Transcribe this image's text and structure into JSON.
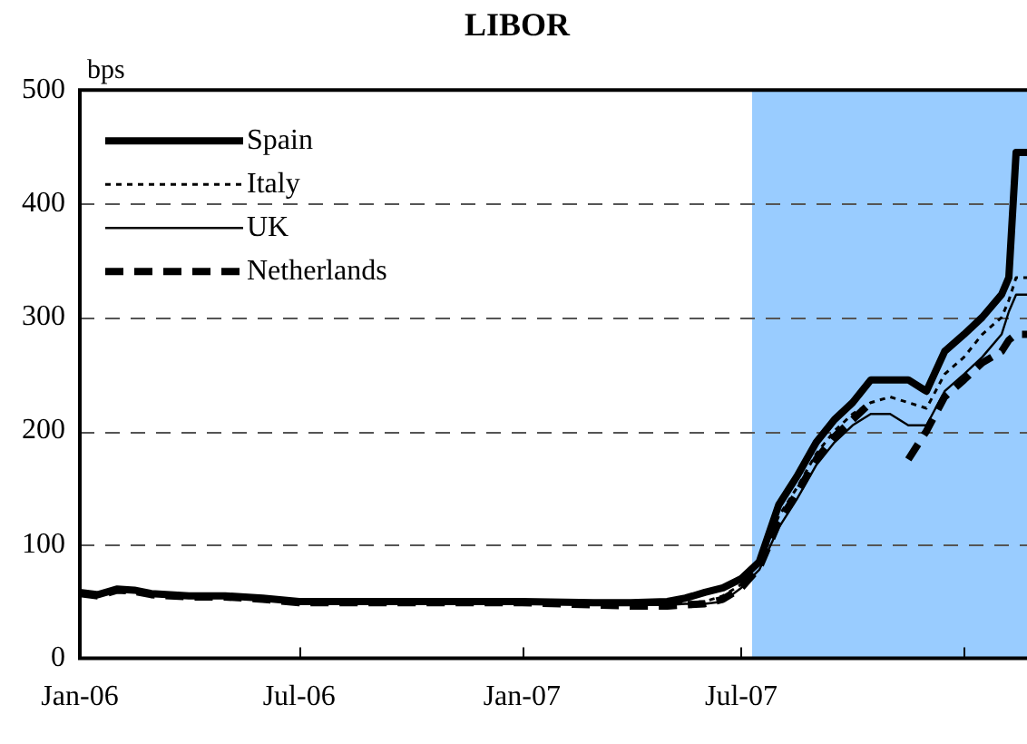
{
  "chart_data": {
    "type": "line",
    "title": "LIBOR",
    "ylabel": "bps",
    "x": [
      "2006-01-01",
      "2006-01-16",
      "2006-02-01",
      "2006-02-15",
      "2006-03-01",
      "2006-04-01",
      "2006-05-01",
      "2006-06-01",
      "2006-07-01",
      "2006-09-01",
      "2006-11-01",
      "2007-01-01",
      "2007-03-01",
      "2007-04-01",
      "2007-05-01",
      "2007-05-16",
      "2007-06-01",
      "2007-06-16",
      "2007-07-01",
      "2007-07-16",
      "2007-08-01",
      "2007-08-16",
      "2007-09-01",
      "2007-09-16",
      "2007-10-01",
      "2007-10-16",
      "2007-11-01",
      "2007-11-16",
      "2007-12-01",
      "2007-12-16",
      "2008-01-01",
      "2008-01-16",
      "2008-02-01",
      "2008-02-07",
      "2008-02-13",
      "2008-02-22"
    ],
    "series": [
      {
        "name": "Spain",
        "color": "#000000",
        "line_style": "solid",
        "values": [
          58,
          56,
          61,
          60,
          57,
          55,
          55,
          53,
          50,
          50,
          50,
          50,
          49,
          49,
          50,
          53,
          58,
          62,
          70,
          85,
          135,
          160,
          190,
          210,
          225,
          245,
          245,
          245,
          235,
          270,
          285,
          300,
          320,
          335,
          445,
          445
        ]
      },
      {
        "name": "Italy",
        "color": "#000000",
        "line_style": "dotted",
        "values": [
          58,
          56,
          61,
          60,
          57,
          55,
          55,
          53,
          50,
          50,
          50,
          50,
          49,
          48,
          48,
          49,
          50,
          55,
          65,
          85,
          125,
          150,
          180,
          200,
          215,
          225,
          230,
          225,
          220,
          250,
          265,
          285,
          300,
          315,
          335,
          335
        ]
      },
      {
        "name": "UK",
        "color": "#000000",
        "line_style": "solid",
        "values": [
          57,
          55,
          60,
          59,
          56,
          54,
          54,
          52,
          49,
          49,
          49,
          49,
          48,
          47,
          47,
          48,
          48,
          50,
          62,
          78,
          115,
          140,
          170,
          190,
          205,
          215,
          215,
          205,
          205,
          235,
          250,
          265,
          285,
          305,
          320,
          320
        ]
      },
      {
        "name": "Netherlands",
        "color": "#000000",
        "line_style": "dashed",
        "values": [
          57,
          55,
          60,
          59,
          56,
          54,
          54,
          52,
          49,
          49,
          49,
          49,
          47,
          46,
          46,
          47,
          48,
          52,
          62,
          80,
          120,
          145,
          175,
          195,
          210,
          225,
          null,
          175,
          200,
          230,
          245,
          260,
          270,
          280,
          285,
          285
        ]
      }
    ],
    "xlim": [
      "2006-01-01",
      "2008-02-22"
    ],
    "xticks": [
      {
        "value": "2006-01",
        "label": "Jan-06"
      },
      {
        "value": "2006-07",
        "label": "Jul-06"
      },
      {
        "value": "2007-01",
        "label": "Jan-07"
      },
      {
        "value": "2007-07",
        "label": "Jul-07"
      },
      {
        "value": "2008-01",
        "label": null
      }
    ],
    "ylim": [
      0,
      500
    ],
    "yticks": [
      0,
      100,
      200,
      300,
      400,
      500
    ],
    "grid": "y",
    "legend": "top left",
    "marker": "none",
    "bands": [
      {
        "axis": "x",
        "from": "2007-07-10",
        "to": "2008-02-22",
        "color": "#99ccff"
      }
    ]
  }
}
